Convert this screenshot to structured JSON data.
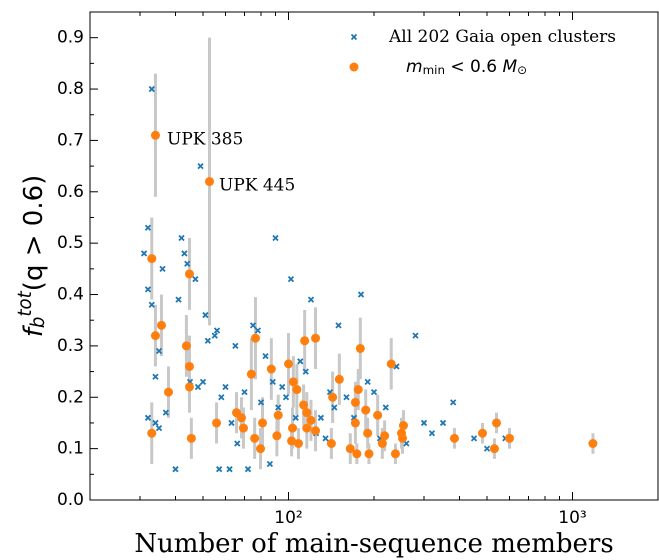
{
  "chart_data": {
    "type": "scatter",
    "x_label": "Number of main-sequence members",
    "y_label": [
      {
        "text": "f",
        "italic": true
      },
      {
        "text": "b",
        "italic": true,
        "sub": true
      },
      {
        "text": "tot",
        "italic": true,
        "sup": true
      },
      {
        "text": "(q > 0.6)"
      }
    ],
    "xlim": [
      20,
      2000
    ],
    "xlog": true,
    "xticks": [
      {
        "value": 100,
        "label": "10²"
      },
      {
        "value": 1000,
        "label": "10³"
      }
    ],
    "xminor_ticks": [
      30,
      40,
      50,
      60,
      70,
      80,
      90,
      200,
      300,
      400,
      500,
      600,
      700,
      800,
      900
    ],
    "ylim": [
      0,
      0.95
    ],
    "yticks": [
      {
        "value": 0,
        "label": "0.0"
      },
      0.1,
      0.2,
      0.3,
      0.4,
      0.5,
      0.6,
      0.7,
      0.8,
      0.9
    ],
    "yminor_ticks": [
      0.05,
      0.15,
      0.25,
      0.35,
      0.45,
      0.55,
      0.65,
      0.75,
      0.85
    ],
    "legend": "upper right",
    "series": [
      {
        "name": [
          {
            "text": "All 202 Gaia open clusters"
          }
        ],
        "color": "#1f77b4",
        "marker": "x",
        "x": [
          33,
          32,
          31,
          32,
          33,
          34,
          35,
          36,
          34,
          35,
          32,
          37,
          40,
          41,
          42,
          43,
          44,
          47,
          45,
          48,
          50,
          49,
          51,
          52,
          55,
          56,
          57,
          58,
          60,
          62,
          63,
          65,
          66,
          70,
          72,
          75,
          78,
          80,
          83,
          86,
          88,
          90,
          92,
          95,
          98,
          102,
          106,
          110,
          115,
          120,
          125,
          130,
          135,
          140,
          145,
          150,
          160,
          170,
          180,
          190,
          200,
          210,
          220,
          240,
          260,
          280,
          300,
          320,
          350,
          380,
          450,
          500,
          580
        ],
        "values": [
          0.8,
          0.53,
          0.48,
          0.41,
          0.38,
          0.24,
          0.29,
          0.45,
          0.15,
          0.14,
          0.16,
          0.17,
          0.06,
          0.39,
          0.51,
          0.48,
          0.46,
          0.43,
          0.23,
          0.22,
          0.23,
          0.65,
          0.36,
          0.31,
          0.32,
          0.33,
          0.06,
          0.2,
          0.22,
          0.06,
          0.15,
          0.3,
          0.11,
          0.21,
          0.06,
          0.34,
          0.33,
          0.19,
          0.28,
          0.07,
          0.23,
          0.51,
          0.18,
          0.22,
          0.2,
          0.43,
          0.16,
          0.27,
          0.25,
          0.39,
          0.13,
          0.16,
          0.12,
          0.21,
          0.18,
          0.34,
          0.2,
          0.16,
          0.4,
          0.23,
          0.21,
          0.12,
          0.18,
          0.26,
          0.11,
          0.32,
          0.15,
          0.13,
          0.15,
          0.19,
          0.12,
          0.1,
          0.12
        ]
      },
      {
        "name": [
          {
            "text": "m",
            "italic": true
          },
          {
            "text": "min",
            "sub": true
          },
          {
            "text": " < 0.6 "
          },
          {
            "text": "M",
            "italic": true
          },
          {
            "text": "⊙",
            "sub": true
          }
        ],
        "color": "#ff7f0e",
        "marker": "o",
        "x": [
          34,
          52.7,
          33,
          44.8,
          35.7,
          34,
          37.8,
          43.7,
          44.8,
          44.8,
          45.5,
          33,
          55.8,
          65.6,
          68.3,
          69.4,
          74,
          76.5,
          76,
          81,
          79.7,
          87,
          91,
          92,
          100,
          102.5,
          104,
          107,
          103.3,
          108.4,
          114,
          113,
          116,
          116,
          120,
          124.5,
          124.5,
          141.6,
          143,
          151,
          165,
          172,
          172,
          176,
          174,
          179,
          187,
          190,
          192,
          206,
          218,
          214,
          230,
          238,
          250,
          254,
          252,
          384,
          482,
          531,
          540,
          600,
          1180
        ],
        "values": [
          0.71,
          0.62,
          0.47,
          0.44,
          0.34,
          0.32,
          0.21,
          0.3,
          0.26,
          0.22,
          0.12,
          0.13,
          0.15,
          0.17,
          0.16,
          0.14,
          0.245,
          0.315,
          0.12,
          0.15,
          0.1,
          0.255,
          0.125,
          0.165,
          0.265,
          0.115,
          0.23,
          0.215,
          0.14,
          0.11,
          0.31,
          0.185,
          0.17,
          0.14,
          0.155,
          0.315,
          0.135,
          0.11,
          0.2,
          0.235,
          0.1,
          0.15,
          0.19,
          0.215,
          0.09,
          0.295,
          0.175,
          0.13,
          0.09,
          0.165,
          0.125,
          0.11,
          0.265,
          0.09,
          0.13,
          0.145,
          0.12,
          0.12,
          0.13,
          0.1,
          0.15,
          0.12,
          0.11
        ],
        "errors": [
          0.12,
          0.28,
          0.08,
          0.07,
          0.06,
          0.06,
          0.05,
          0.06,
          0.06,
          0.05,
          0.04,
          0.06,
          0.04,
          0.04,
          0.04,
          0.04,
          0.07,
          0.08,
          0.04,
          0.05,
          0.04,
          0.06,
          0.04,
          0.04,
          0.06,
          0.03,
          0.05,
          0.05,
          0.04,
          0.03,
          0.06,
          0.04,
          0.04,
          0.04,
          0.04,
          0.06,
          0.04,
          0.03,
          0.05,
          0.05,
          0.03,
          0.04,
          0.04,
          0.04,
          0.02,
          0.06,
          0.04,
          0.03,
          0.02,
          0.04,
          0.03,
          0.03,
          0.05,
          0.02,
          0.03,
          0.03,
          0.03,
          0.02,
          0.02,
          0.02,
          0.02,
          0.02,
          0.02
        ]
      }
    ],
    "annotations": [
      "UPK 385",
      "UPK 445"
    ]
  }
}
